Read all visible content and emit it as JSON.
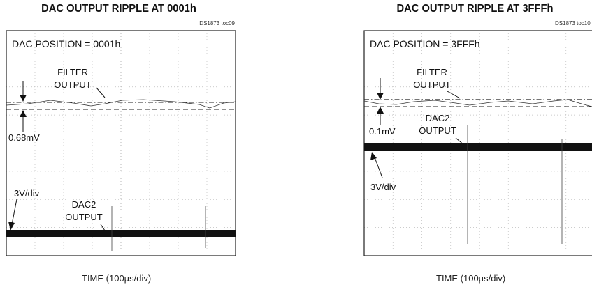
{
  "chart_data": [
    {
      "type": "line",
      "title": "DAC OUTPUT RIPPLE AT 0001h",
      "figure_id": "DS1873 toc09",
      "xlabel": "TIME (100µs/div)",
      "annotations": {
        "position": "DAC POSITION = 0001h",
        "filter_output": [
          "FILTER",
          "OUTPUT"
        ],
        "ripple": "0.68mV",
        "scale": "3V/div",
        "dac2_output": [
          "DAC2",
          "OUTPUT"
        ]
      },
      "grid": true,
      "divisions": {
        "x": 8,
        "y": 8
      }
    },
    {
      "type": "line",
      "title": "DAC OUTPUT RIPPLE AT 3FFFh",
      "figure_id": "DS1873 toc10",
      "xlabel": "TIME (100µs/div)",
      "annotations": {
        "position": "DAC POSITION = 3FFFh",
        "filter_output": [
          "FILTER",
          "OUTPUT"
        ],
        "ripple": "0.1mV",
        "scale": "3V/div",
        "dac2_output": [
          "DAC2",
          "OUTPUT"
        ]
      },
      "grid": true,
      "divisions": {
        "x": 8,
        "y": 8
      }
    }
  ]
}
